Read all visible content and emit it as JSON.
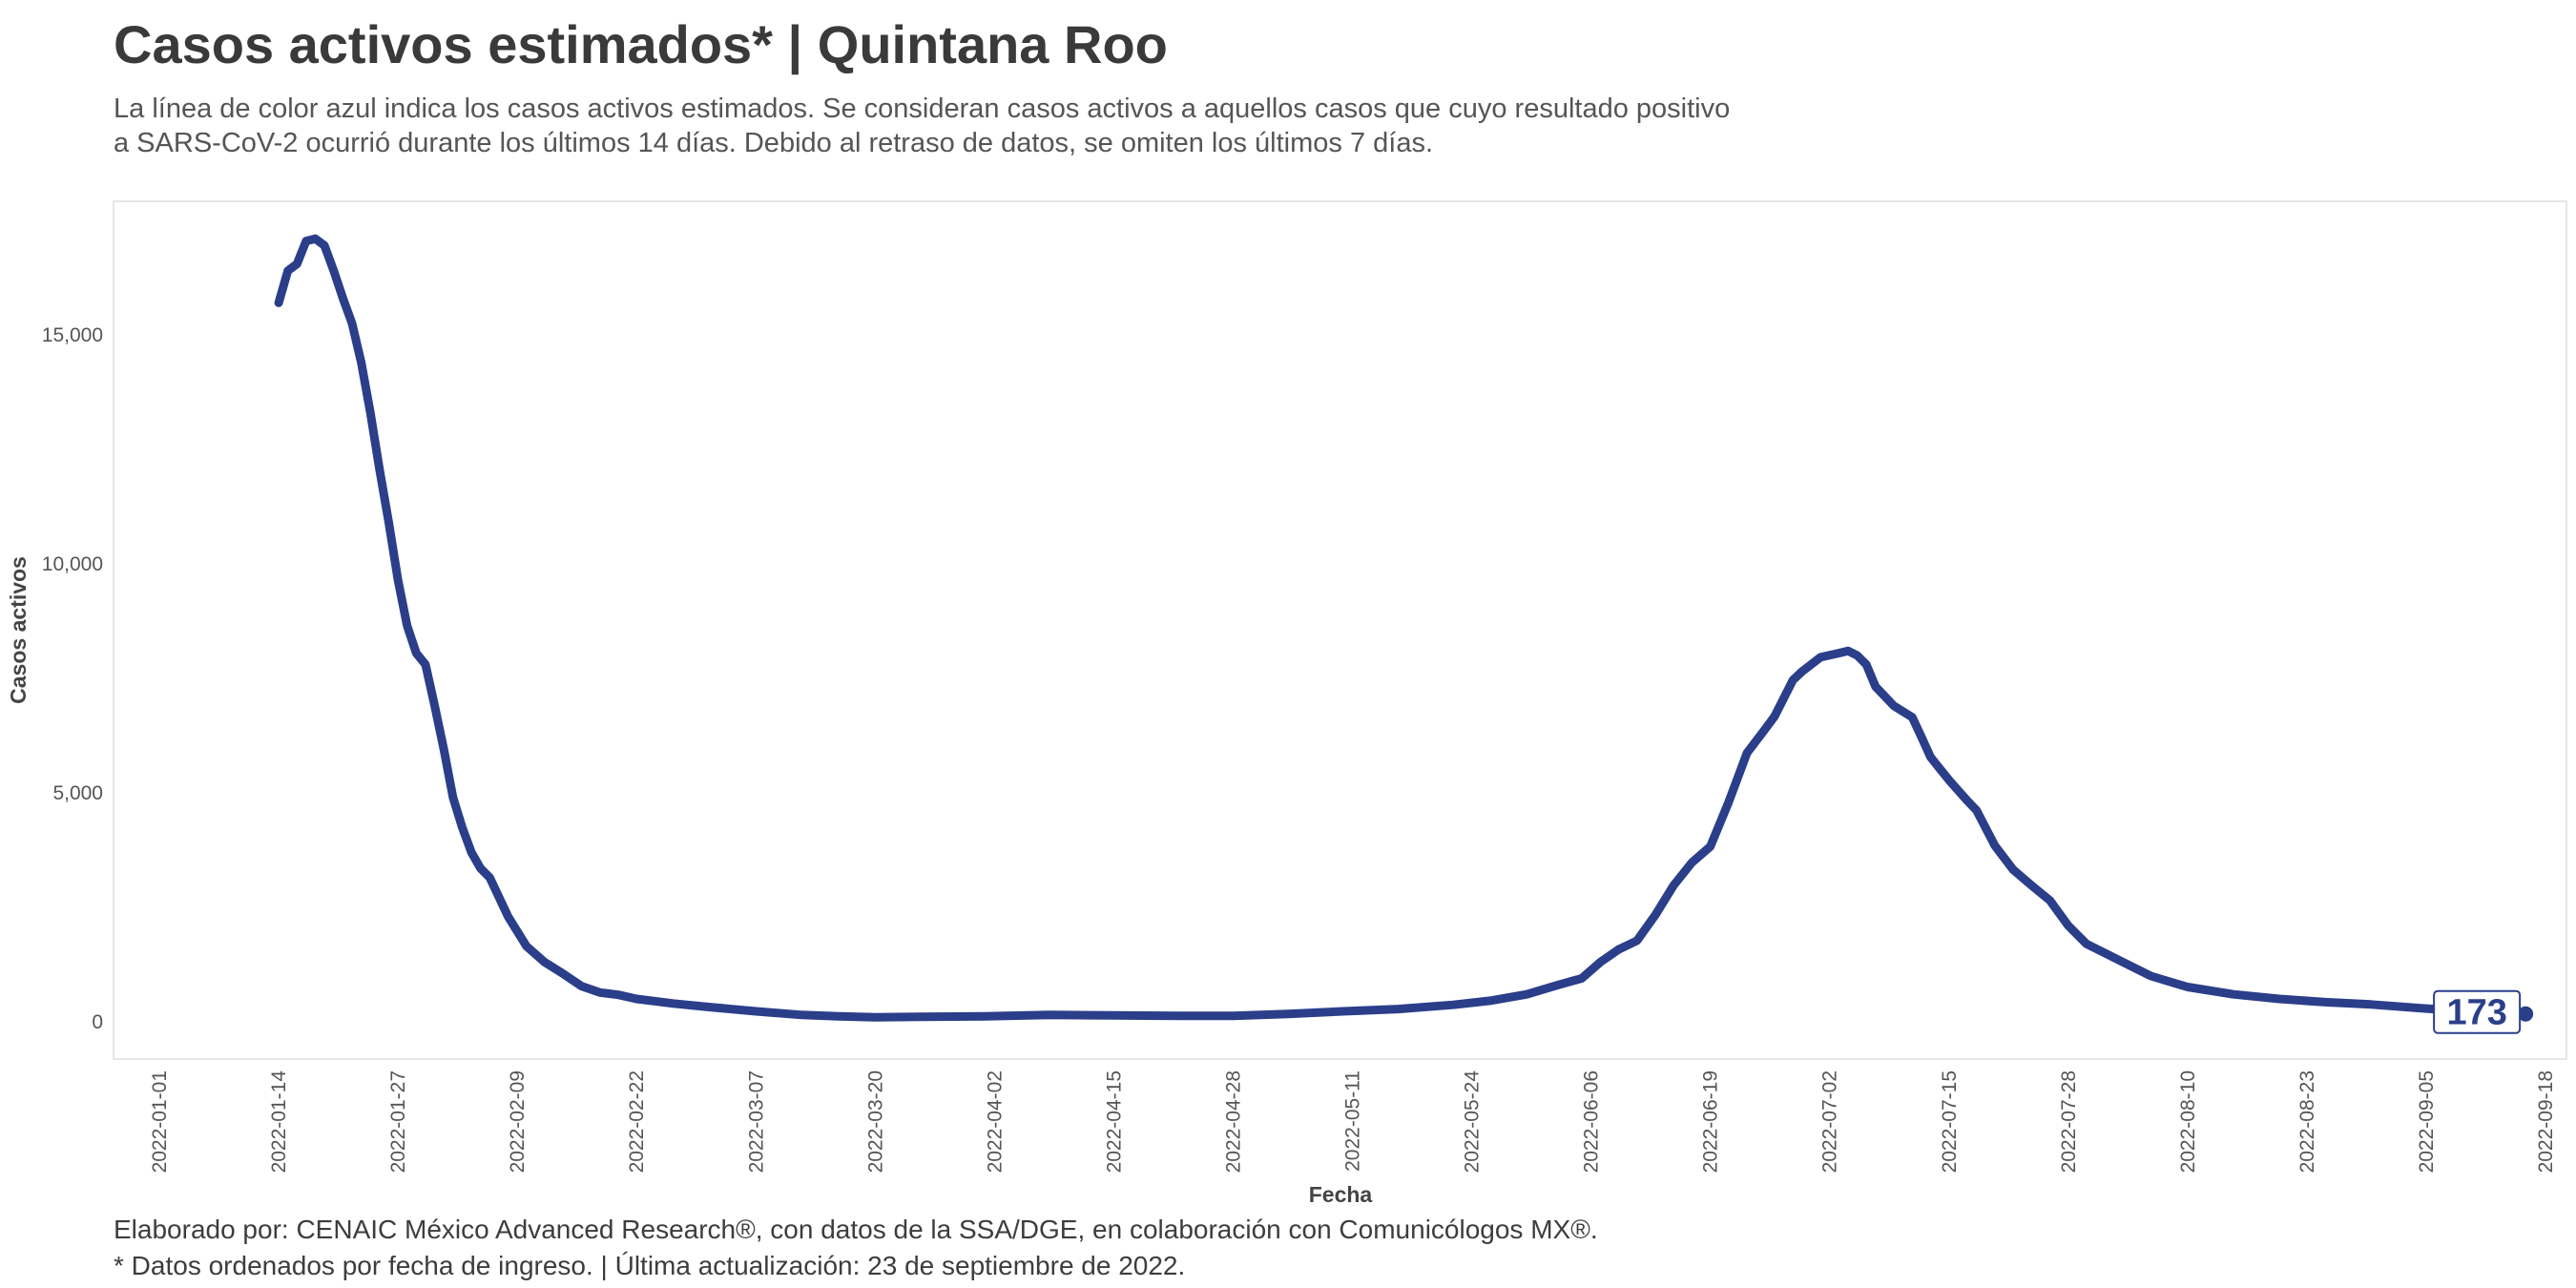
{
  "header": {
    "title": "Casos activos estimados* | Quintana Roo",
    "subtitle_line1": "La línea de color azul indica los casos activos estimados. Se consideran casos activos a aquellos casos que cuyo resultado positivo",
    "subtitle_line2": "a SARS-CoV-2 ocurrió durante los últimos 14 días. Debido al retraso de datos, se omiten los últimos 7 días."
  },
  "caption": {
    "line1": "Elaborado por: CENAIC México Advanced Research®, con datos de la SSA/DGE, en colaboración con Comunicólogos MX®.",
    "line2": "* Datos ordenados por fecha de ingreso. | Última actualización: 23 de septiembre de 2022."
  },
  "colors": {
    "line": "#2b3e8a",
    "panel_border": "#e6e6e6",
    "text": "#3d3d3d"
  },
  "chart_data": {
    "type": "line",
    "xlabel": "Fecha",
    "ylabel": "Casos activos",
    "x_ticks": [
      "2022-01-01",
      "2022-01-14",
      "2022-01-27",
      "2022-02-09",
      "2022-02-22",
      "2022-03-07",
      "2022-03-20",
      "2022-04-02",
      "2022-04-15",
      "2022-04-28",
      "2022-05-11",
      "2022-05-24",
      "2022-06-06",
      "2022-06-19",
      "2022-07-02",
      "2022-07-15",
      "2022-07-28",
      "2022-08-10",
      "2022-08-23",
      "2022-09-05",
      "2022-09-18"
    ],
    "y_ticks": [
      0,
      5000,
      10000,
      15000
    ],
    "y_tick_labels": [
      "0",
      "5,000",
      "10,000",
      "15,000"
    ],
    "xlim": [
      "2022-01-01",
      "2022-09-18"
    ],
    "ylim": [
      -800,
      17900
    ],
    "grid": false,
    "end_label": "173",
    "series": [
      {
        "x": [
          "2022-01-14",
          "2022-01-15",
          "2022-01-16",
          "2022-01-17",
          "2022-01-18",
          "2022-01-19",
          "2022-01-20",
          "2022-01-21",
          "2022-01-22",
          "2022-01-23",
          "2022-01-24",
          "2022-01-25",
          "2022-01-26",
          "2022-01-27",
          "2022-01-28",
          "2022-01-29",
          "2022-01-30",
          "2022-01-31",
          "2022-02-01",
          "2022-02-02",
          "2022-02-03",
          "2022-02-04",
          "2022-02-05",
          "2022-02-06",
          "2022-02-08",
          "2022-02-10",
          "2022-02-12",
          "2022-02-14",
          "2022-02-16",
          "2022-02-18",
          "2022-02-20",
          "2022-02-22",
          "2022-02-26",
          "2022-03-02",
          "2022-03-07",
          "2022-03-12",
          "2022-03-16",
          "2022-03-20",
          "2022-03-25",
          "2022-04-01",
          "2022-04-08",
          "2022-04-15",
          "2022-04-22",
          "2022-04-28",
          "2022-05-04",
          "2022-05-10",
          "2022-05-16",
          "2022-05-22",
          "2022-05-26",
          "2022-05-30",
          "2022-06-02",
          "2022-06-05",
          "2022-06-07",
          "2022-06-09",
          "2022-06-11",
          "2022-06-13",
          "2022-06-15",
          "2022-06-17",
          "2022-06-19",
          "2022-06-21",
          "2022-06-23",
          "2022-06-25",
          "2022-06-26",
          "2022-06-28",
          "2022-06-29",
          "2022-07-01",
          "2022-07-03",
          "2022-07-04",
          "2022-07-05",
          "2022-07-06",
          "2022-07-07",
          "2022-07-09",
          "2022-07-11",
          "2022-07-12",
          "2022-07-13",
          "2022-07-15",
          "2022-07-17",
          "2022-07-18",
          "2022-07-20",
          "2022-07-22",
          "2022-07-24",
          "2022-07-26",
          "2022-07-28",
          "2022-07-30",
          "2022-08-01",
          "2022-08-03",
          "2022-08-06",
          "2022-08-10",
          "2022-08-15",
          "2022-08-20",
          "2022-08-25",
          "2022-08-30",
          "2022-09-05",
          "2022-09-10",
          "2022-09-15"
        ],
        "values": [
          15700,
          16400,
          16550,
          17050,
          17100,
          16950,
          16400,
          15800,
          15250,
          14400,
          13300,
          12050,
          10900,
          9650,
          8650,
          8050,
          7800,
          6900,
          5950,
          4900,
          4250,
          3700,
          3350,
          3150,
          2300,
          1650,
          1300,
          1050,
          780,
          640,
          590,
          500,
          400,
          320,
          230,
          150,
          120,
          100,
          110,
          120,
          150,
          140,
          130,
          130,
          170,
          230,
          280,
          370,
          460,
          600,
          780,
          950,
          1300,
          1580,
          1770,
          2330,
          2980,
          3480,
          3830,
          4800,
          5870,
          6400,
          6670,
          7460,
          7650,
          7960,
          8050,
          8100,
          8000,
          7800,
          7320,
          6900,
          6650,
          6220,
          5780,
          5280,
          4830,
          4620,
          3850,
          3320,
          2980,
          2650,
          2100,
          1700,
          1500,
          1300,
          1000,
          760,
          600,
          500,
          430,
          380,
          290,
          230,
          173
        ]
      }
    ]
  }
}
